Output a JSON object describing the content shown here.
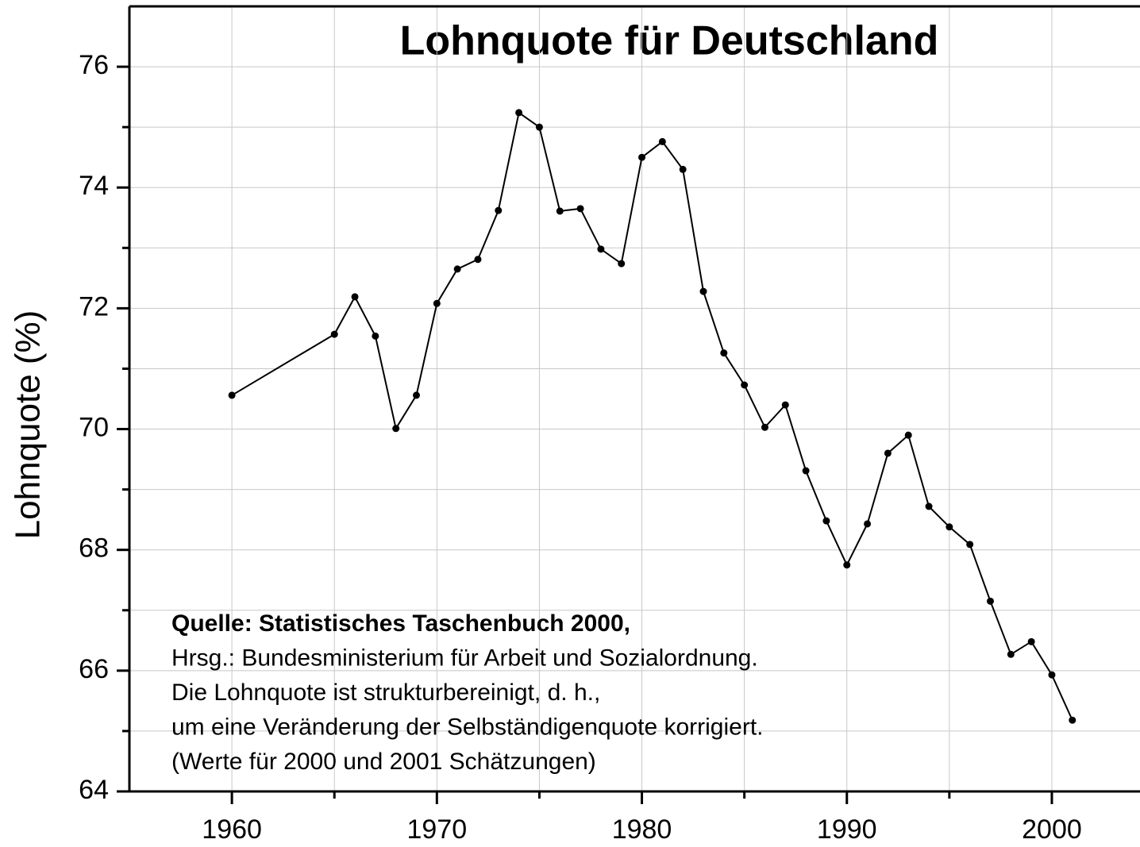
{
  "chart_data": {
    "type": "line",
    "title": "Lohnquote für Deutschland",
    "y_label": "Lohnquote (%)",
    "annotations": [
      {
        "text": "Quelle: Statistisches Taschenbuch 2000,",
        "bold": true
      },
      {
        "text": "Hrsg.: Bundesministerium für Arbeit und Sozialordnung.",
        "bold": false
      },
      {
        "text": "Die Lohnquote ist strukturbereinigt, d. h.,",
        "bold": false
      },
      {
        "text": "um eine Veränderung der Selbständigenquote korrigiert.",
        "bold": false
      },
      {
        "text": "(Werte für 2000 und 2001 Schätzungen)",
        "bold": false
      }
    ],
    "x": [
      1960,
      1965,
      1966,
      1967,
      1968,
      1969,
      1970,
      1971,
      1972,
      1973,
      1974,
      1975,
      1976,
      1977,
      1978,
      1979,
      1980,
      1981,
      1982,
      1983,
      1984,
      1985,
      1986,
      1987,
      1988,
      1989,
      1990,
      1991,
      1992,
      1993,
      1994,
      1995,
      1996,
      1997,
      1998,
      1999,
      2000,
      2001
    ],
    "series": [
      {
        "name": "Lohnquote",
        "color": "#000000",
        "values": [
          70.56,
          71.57,
          72.19,
          71.54,
          70.01,
          70.56,
          72.08,
          72.65,
          72.81,
          73.62,
          75.24,
          75.0,
          73.61,
          73.65,
          72.98,
          72.74,
          74.5,
          74.76,
          74.3,
          72.28,
          71.26,
          70.73,
          70.03,
          70.4,
          69.31,
          68.48,
          67.75,
          68.43,
          69.6,
          69.9,
          68.72,
          68.38,
          68.09,
          67.15,
          66.27,
          66.48,
          65.93,
          65.18
        ]
      }
    ],
    "xlim": [
      1955,
      2004.3
    ],
    "ylim": [
      64,
      77
    ],
    "xticks": [
      1960,
      1970,
      1980,
      1990,
      2000
    ],
    "yticks": [
      64,
      66,
      68,
      70,
      72,
      74,
      76
    ],
    "x_minor_ticks": [
      1965,
      1975,
      1985,
      1995
    ],
    "y_minor_ticks": [
      65,
      67,
      69,
      71,
      73,
      75
    ],
    "grid": true
  }
}
